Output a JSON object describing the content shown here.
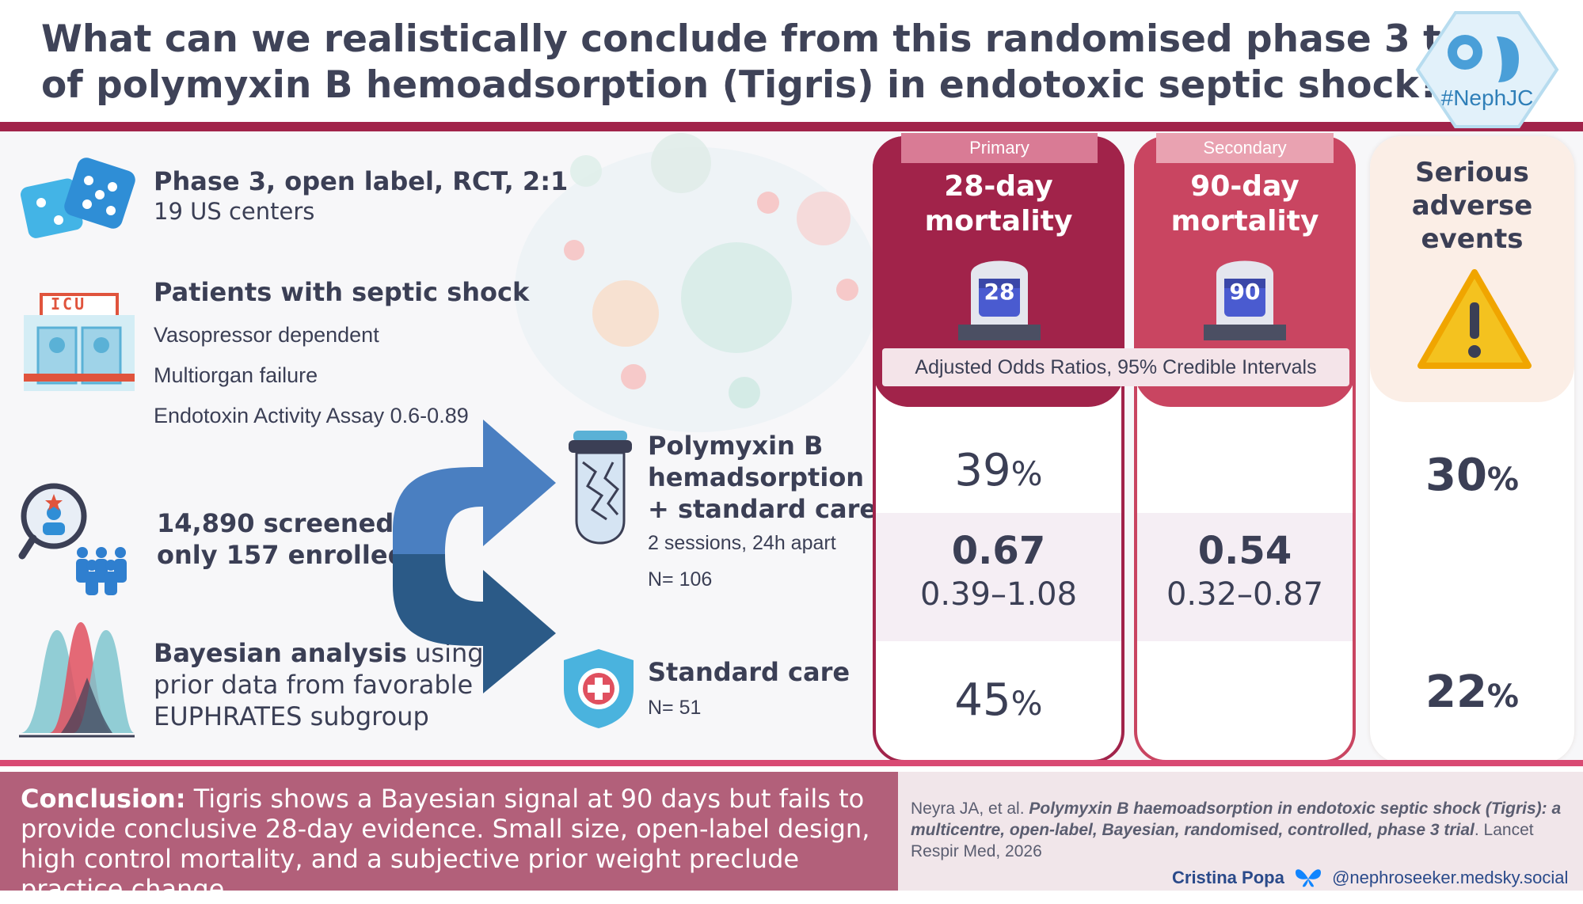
{
  "title": {
    "line1": "What can we realistically conclude from this randomised phase 3 trial",
    "line2": "of polymyxin B hemoadsorption (Tigris) in endotoxic septic shock?"
  },
  "logo": {
    "text": "#NephJC"
  },
  "design": {
    "heading": "Phase 3, open label, RCT, 2:1",
    "sub": "19 US centers"
  },
  "patients": {
    "heading": "Patients with septic shock",
    "items": [
      "Vasopressor dependent",
      "Multiorgan failure",
      "Endotoxin Activity Assay 0.6-0.89"
    ],
    "icu_sign": "ICU"
  },
  "enrollment": {
    "line1": "14,890 screened,",
    "line2": "only 157 enrolled"
  },
  "bayesian": {
    "bold": "Bayesian analysis",
    "rest1": " using",
    "line2": "prior data from favorable",
    "line3": "EUPHRATES subgroup"
  },
  "arms": {
    "treatment": {
      "line1": "Polymyxin B",
      "line2": "hemadsorption",
      "line3": "+ standard care",
      "detail": "2 sessions, 24h apart",
      "n": "N= 106"
    },
    "control": {
      "name": "Standard care",
      "n": "N= 51"
    }
  },
  "columns": {
    "primary": {
      "pill": "Primary",
      "line1": "28-day",
      "line2": "mortality",
      "badge": "28",
      "treatment_value": "39",
      "or": "0.67",
      "ci": "0.39–1.08",
      "control_value": "45",
      "unit": "%"
    },
    "secondary": {
      "pill": "Secondary",
      "line1": "90-day",
      "line2": "mortality",
      "badge": "90",
      "or": "0.54",
      "ci": "0.32–0.87"
    },
    "adverse": {
      "line1": "Serious",
      "line2": "adverse",
      "line3": "events",
      "treatment_value": "30",
      "control_value": "22",
      "unit": "%"
    },
    "or_label": "Adjusted Odds Ratios, 95% Credible Intervals"
  },
  "conclusion": {
    "label": "Conclusion:",
    "text": " Tigris shows a Bayesian signal at 90 days but fails to provide conclusive 28-day evidence. Small size, open-label design, high control mortality, and a subjective prior weight preclude practice change."
  },
  "reference": {
    "authors": "Neyra JA, et al. ",
    "title": "Polymyxin B haemoadsorption in endotoxic septic shock (Tigris): a multicentre, open-label, Bayesian, randomised, controlled, phase 3 trial",
    "journal": ". Lancet Respir Med, 2026"
  },
  "author": {
    "name": "Cristina Popa",
    "handle": "@nephroseeker.medsky.social"
  },
  "colors": {
    "primary": "#a1234a",
    "secondary": "#c94561",
    "adverse_bg": "#fbeee6",
    "arrow_up": "#4a7fc1",
    "arrow_down": "#2b5a87",
    "warning": "#f4c21f"
  }
}
